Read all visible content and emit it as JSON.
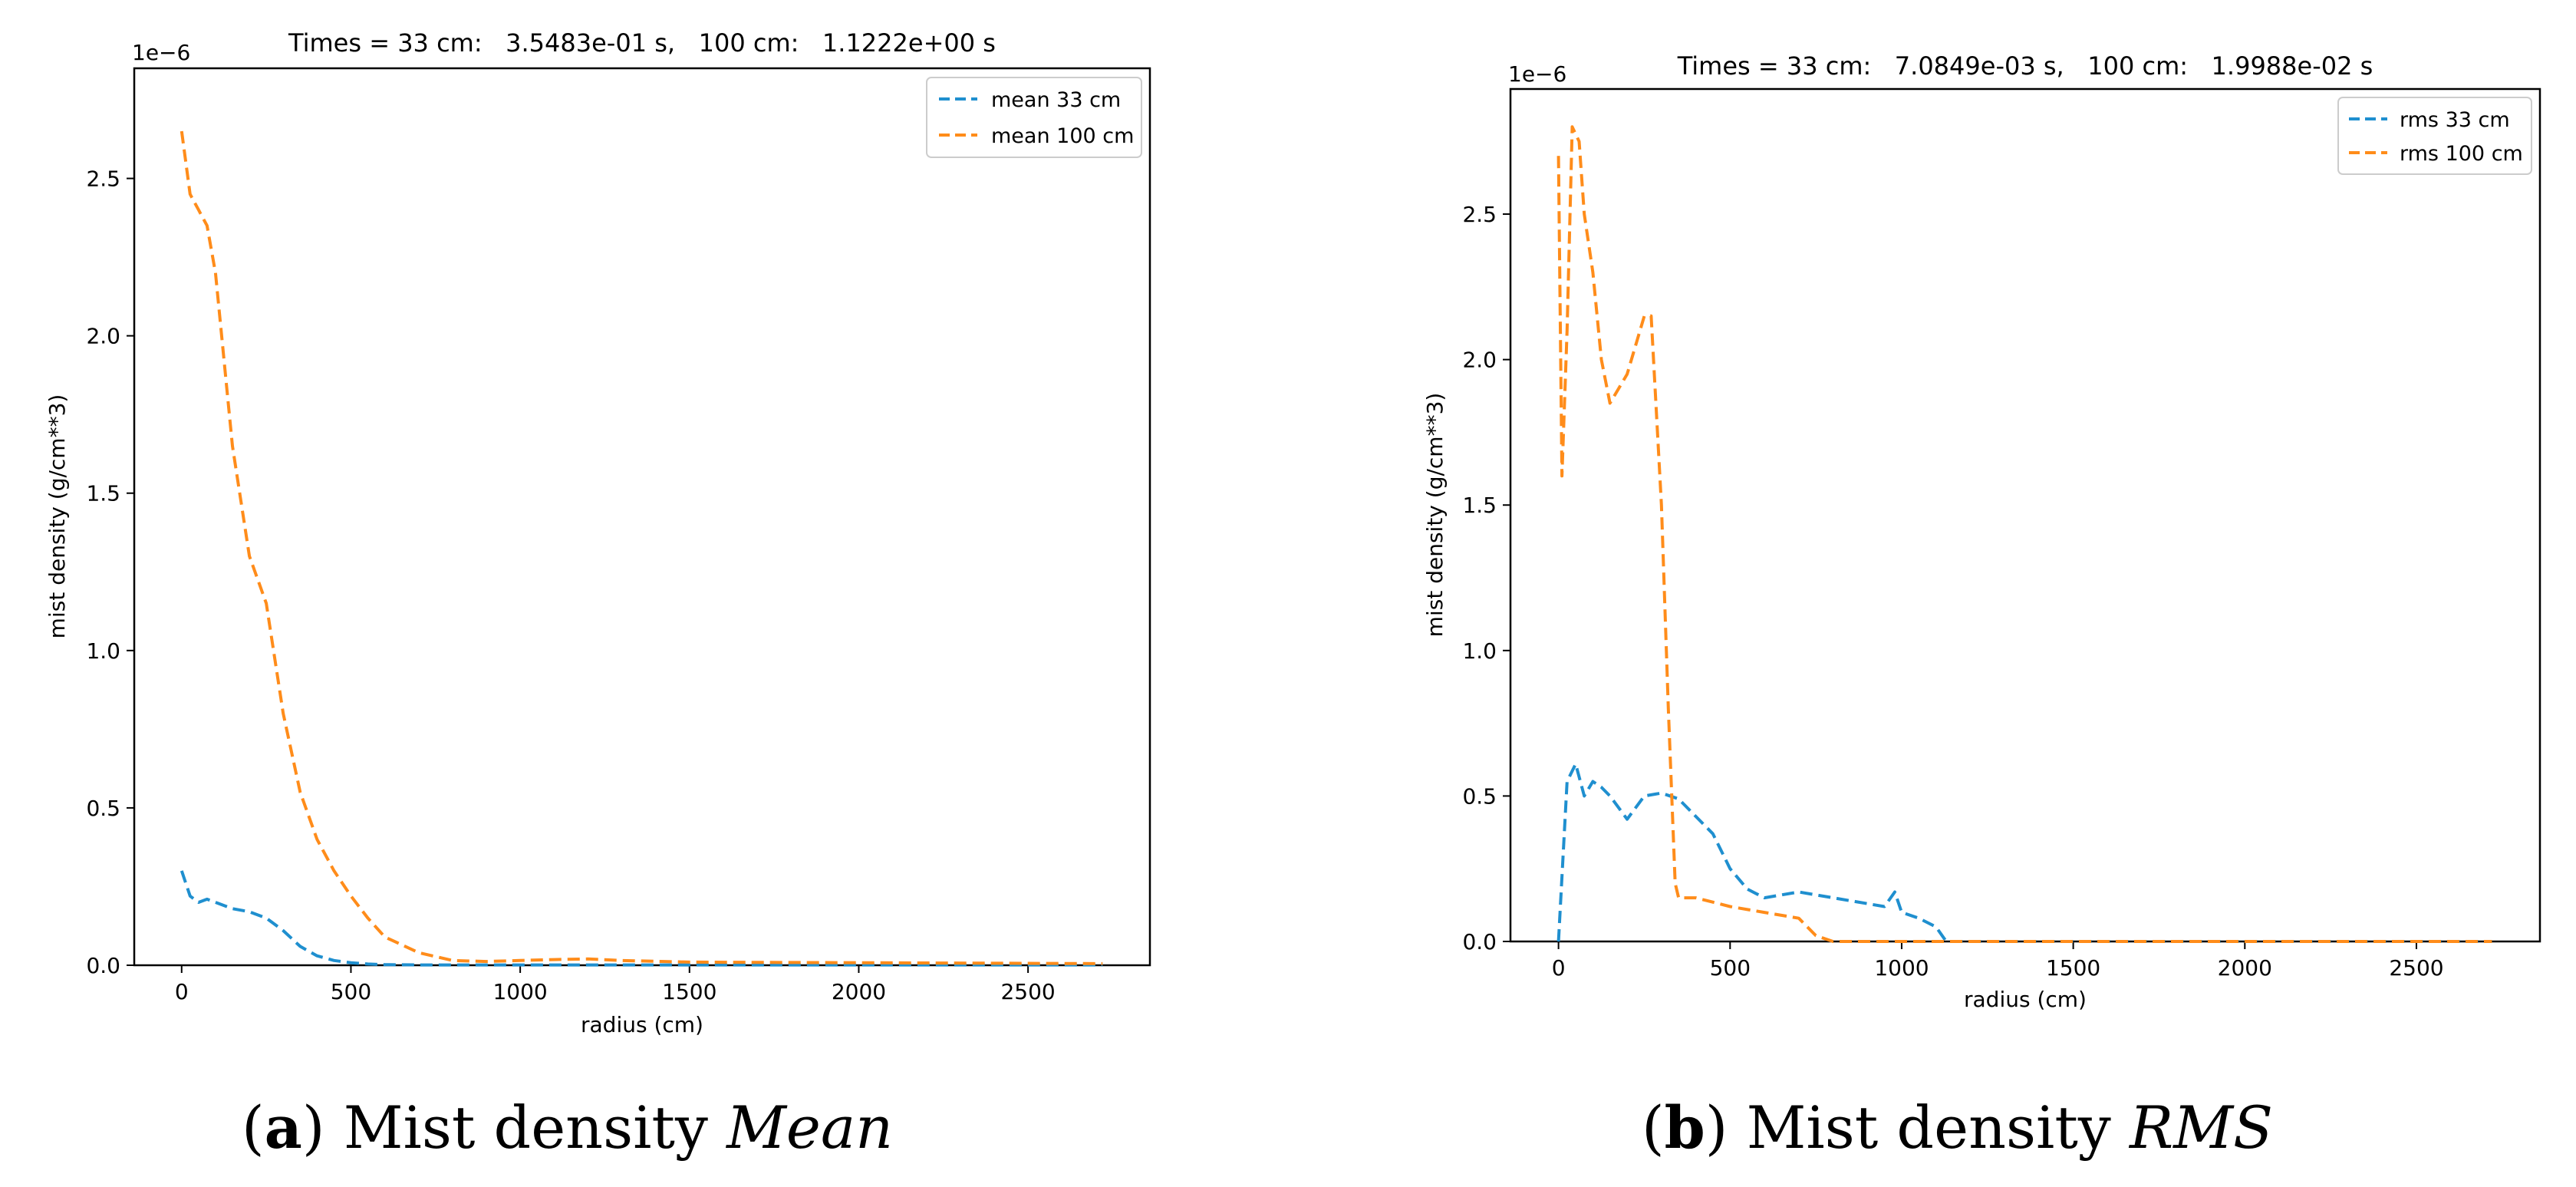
{
  "colors": {
    "series_a": "#1f8fcf",
    "series_b": "#ff8c1a",
    "axis": "#000000"
  },
  "chart_data": [
    {
      "type": "line",
      "title": "Times = 33 cm:   3.5483e-01 s,   100 cm:   1.1222e+00 s",
      "xlabel": "radius (cm)",
      "ylabel": "mist density (g/cm**3)",
      "y_scale_label": "1e−6",
      "xlim": [
        -140,
        2860
      ],
      "ylim": [
        0,
        2.85
      ],
      "x_ticks": [
        0,
        500,
        1000,
        1500,
        2000,
        2500
      ],
      "x_tick_labels": [
        "0",
        "500",
        "1000",
        "1500",
        "2000",
        "2500"
      ],
      "y_ticks": [
        0,
        0.5,
        1.0,
        1.5,
        2.0,
        2.5
      ],
      "y_tick_labels": [
        "0.0",
        "0.5",
        "1.0",
        "1.5",
        "2.0",
        "2.5"
      ],
      "legend_position": "top-right",
      "series": [
        {
          "name": "mean 33 cm",
          "style": "dashed",
          "x": [
            0,
            25,
            50,
            75,
            100,
            150,
            200,
            250,
            300,
            350,
            400,
            450,
            500,
            550,
            600,
            700,
            800,
            1000,
            1500,
            2000,
            2500,
            2720
          ],
          "y": [
            0.3,
            0.22,
            0.2,
            0.21,
            0.2,
            0.18,
            0.17,
            0.15,
            0.11,
            0.06,
            0.03,
            0.015,
            0.008,
            0.004,
            0.002,
            0.001,
            0.001,
            0.001,
            0.001,
            0.001,
            0.001,
            0.001
          ]
        },
        {
          "name": "mean 100 cm",
          "style": "dashed",
          "x": [
            0,
            25,
            50,
            75,
            100,
            150,
            200,
            250,
            300,
            350,
            400,
            450,
            500,
            550,
            600,
            700,
            800,
            900,
            1000,
            1100,
            1200,
            1300,
            1500,
            2000,
            2500,
            2720
          ],
          "y": [
            2.65,
            2.45,
            2.4,
            2.35,
            2.2,
            1.65,
            1.3,
            1.15,
            0.8,
            0.55,
            0.4,
            0.3,
            0.22,
            0.15,
            0.09,
            0.04,
            0.015,
            0.012,
            0.015,
            0.018,
            0.02,
            0.015,
            0.01,
            0.008,
            0.006,
            0.005
          ]
        }
      ]
    },
    {
      "type": "line",
      "title": "Times = 33 cm:   7.0849e-03 s,   100 cm:   1.9988e-02 s",
      "xlabel": "radius (cm)",
      "ylabel": "mist density (g/cm**3)",
      "y_scale_label": "1e−6",
      "xlim": [
        -140,
        2860
      ],
      "ylim": [
        0,
        2.93
      ],
      "x_ticks": [
        0,
        500,
        1000,
        1500,
        2000,
        2500
      ],
      "x_tick_labels": [
        "0",
        "500",
        "1000",
        "1500",
        "2000",
        "2500"
      ],
      "y_ticks": [
        0,
        0.5,
        1.0,
        1.5,
        2.0,
        2.5
      ],
      "y_tick_labels": [
        "0.0",
        "0.5",
        "1.0",
        "1.5",
        "2.0",
        "2.5"
      ],
      "legend_position": "top-right",
      "series": [
        {
          "name": "rms 33 cm",
          "style": "dashed",
          "x": [
            0,
            25,
            50,
            75,
            100,
            125,
            150,
            200,
            250,
            300,
            350,
            400,
            450,
            500,
            550,
            600,
            700,
            800,
            900,
            950,
            980,
            1000,
            1050,
            1100,
            1130,
            1500,
            2000,
            2500,
            2720
          ],
          "y": [
            0,
            0.55,
            0.61,
            0.5,
            0.55,
            0.53,
            0.5,
            0.42,
            0.5,
            0.51,
            0.49,
            0.43,
            0.37,
            0.25,
            0.18,
            0.15,
            0.17,
            0.15,
            0.13,
            0.12,
            0.17,
            0.1,
            0.08,
            0.05,
            0,
            0,
            0,
            0,
            0
          ]
        },
        {
          "name": "rms 100 cm",
          "style": "dashed",
          "x": [
            0,
            10,
            25,
            40,
            60,
            75,
            100,
            125,
            150,
            175,
            200,
            250,
            270,
            300,
            320,
            340,
            350,
            400,
            500,
            600,
            700,
            750,
            800,
            1000,
            1500,
            2000,
            2500,
            2720
          ],
          "y": [
            2.7,
            1.6,
            2.1,
            2.8,
            2.75,
            2.5,
            2.3,
            2.0,
            1.85,
            1.9,
            1.95,
            2.15,
            2.15,
            1.5,
            0.8,
            0.2,
            0.15,
            0.15,
            0.12,
            0.1,
            0.08,
            0.02,
            0,
            0,
            0,
            0,
            0,
            0
          ]
        }
      ]
    }
  ],
  "captions": [
    {
      "label": "a",
      "text": "Mist density",
      "emph": "Mean"
    },
    {
      "label": "b",
      "text": "Mist density",
      "emph": "RMS"
    }
  ]
}
